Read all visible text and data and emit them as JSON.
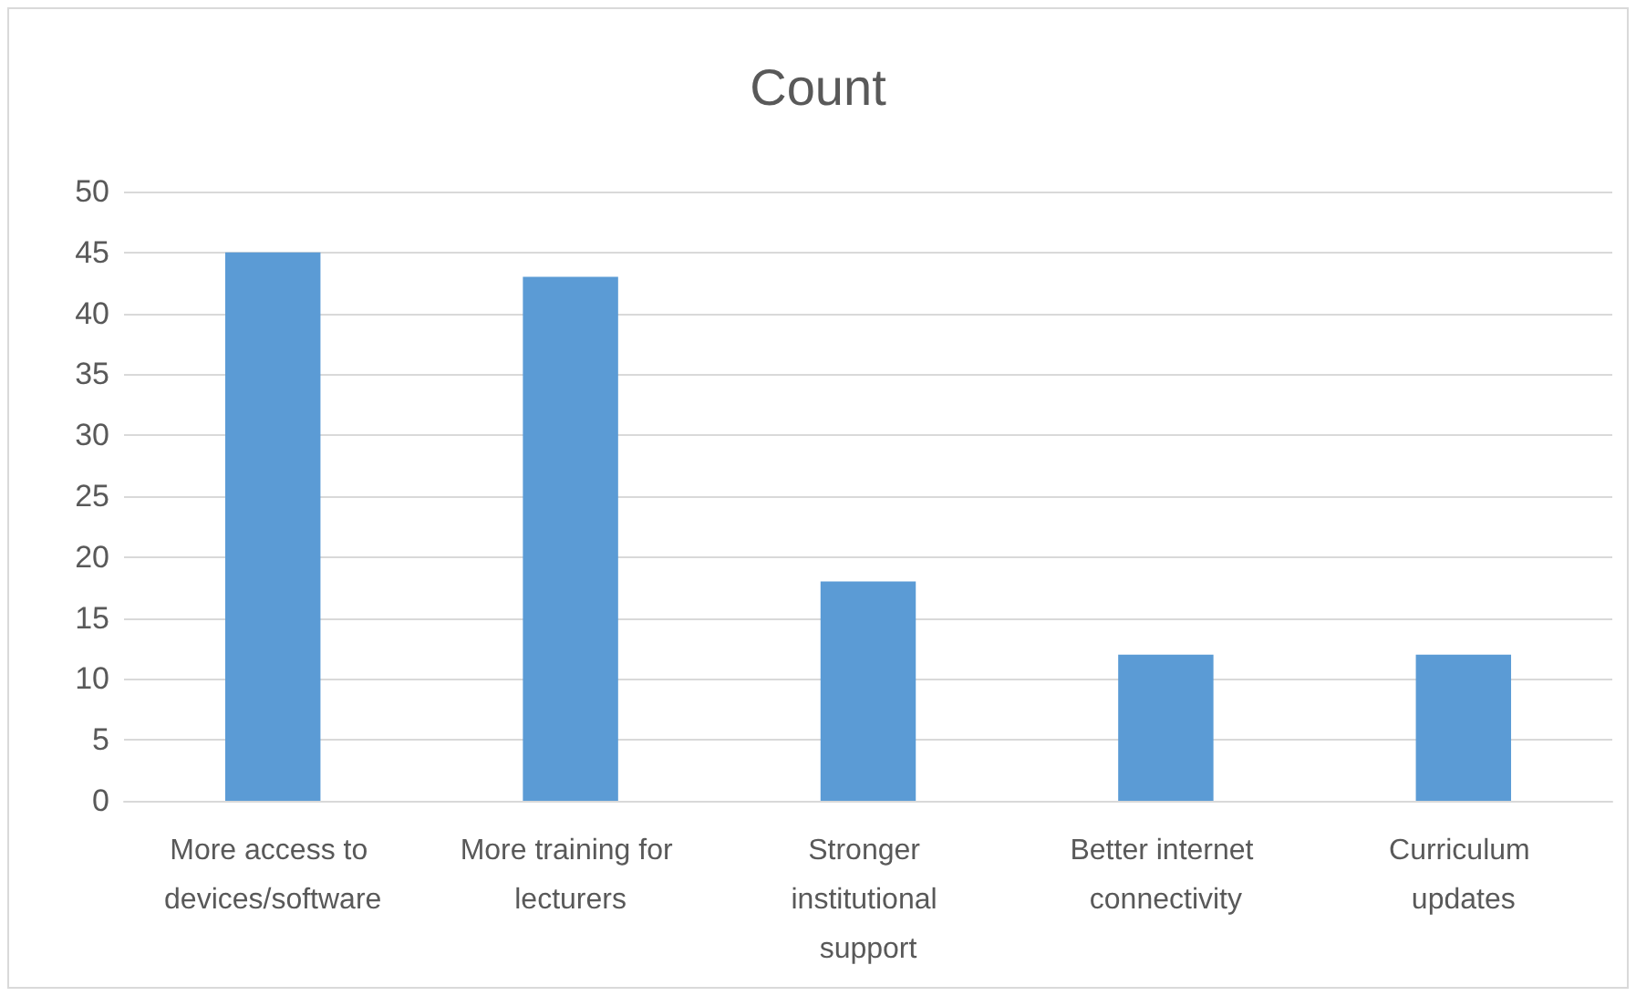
{
  "chart_data": {
    "type": "bar",
    "title": "Count",
    "categories": [
      "More access to devices/software",
      "More training for lecturers",
      "Stronger institutional support",
      "Better internet connectivity",
      "Curriculum updates"
    ],
    "values": [
      45,
      43,
      18,
      12,
      12
    ],
    "color": "#5b9bd5",
    "ylim": [
      0,
      50
    ],
    "yticks": [
      0,
      5,
      10,
      15,
      20,
      25,
      30,
      35,
      40,
      45,
      50
    ],
    "grid": "y"
  }
}
